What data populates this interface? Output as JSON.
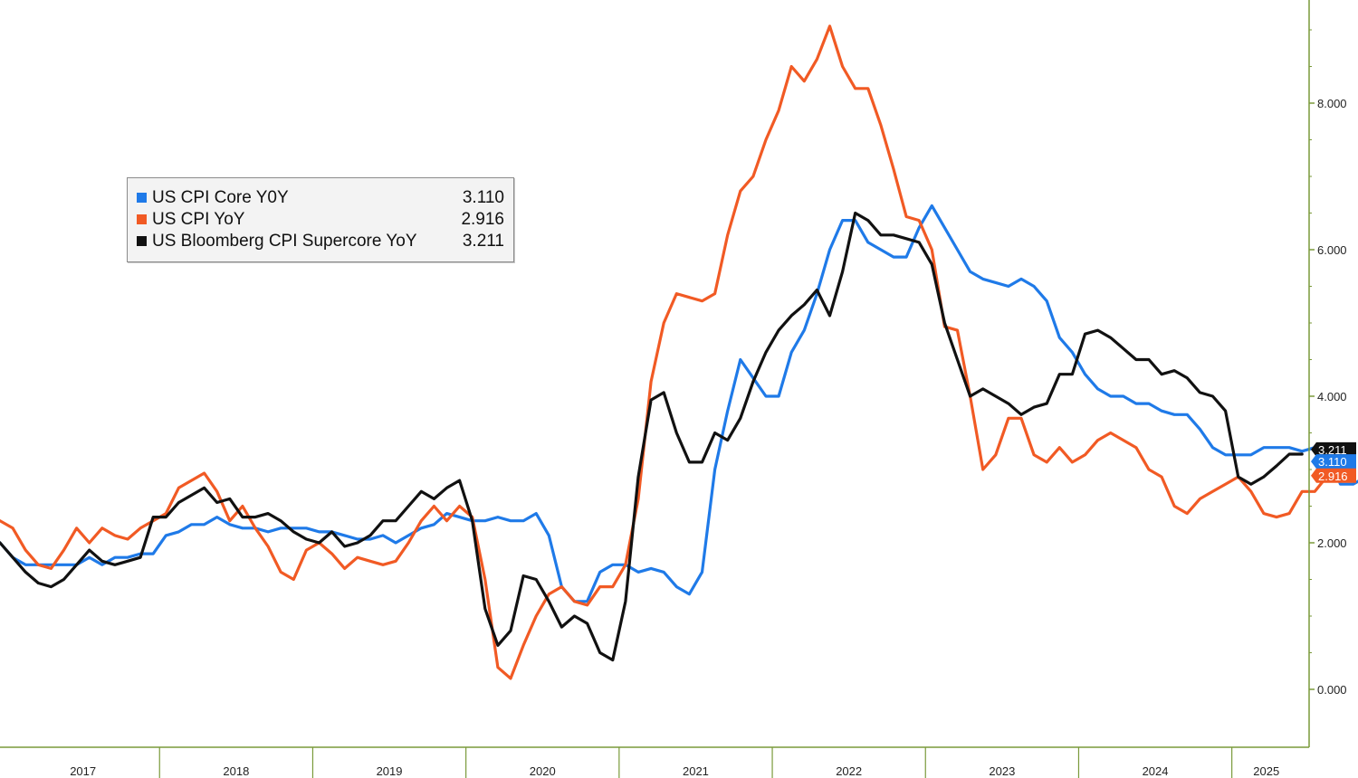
{
  "chart_data": {
    "type": "line",
    "title": "",
    "xlabel": "",
    "ylabel": "",
    "ylim": [
      -0.4,
      9.3
    ],
    "yticks": [
      0,
      2,
      4,
      6,
      8
    ],
    "ytick_labels": [
      "0.000",
      "2.000",
      "4.000",
      "6.000",
      "8.000"
    ],
    "y_axis_position": "right",
    "grid": false,
    "legend_position": "upper-left",
    "x_start": "2016-12",
    "x_step": "month",
    "x_year_labels": [
      "2017",
      "2018",
      "2019",
      "2020",
      "2021",
      "2022",
      "2023",
      "2024",
      "2025"
    ],
    "series": [
      {
        "name": "US CPI Core Y0Y",
        "last_value": "3.110",
        "color": "#1f7ae8",
        "values": [
          2.0,
          1.8,
          1.7,
          1.7,
          1.7,
          1.7,
          1.7,
          1.8,
          1.7,
          1.8,
          1.8,
          1.85,
          1.85,
          2.1,
          2.15,
          2.25,
          2.25,
          2.35,
          2.25,
          2.2,
          2.2,
          2.15,
          2.2,
          2.2,
          2.2,
          2.15,
          2.15,
          2.1,
          2.05,
          2.05,
          2.1,
          2.0,
          2.1,
          2.2,
          2.25,
          2.4,
          2.35,
          2.3,
          2.3,
          2.35,
          2.3,
          2.3,
          2.4,
          2.1,
          1.4,
          1.2,
          1.2,
          1.6,
          1.7,
          1.7,
          1.6,
          1.65,
          1.6,
          1.4,
          1.3,
          1.6,
          3.0,
          3.8,
          4.5,
          4.25,
          4.0,
          4.0,
          4.6,
          4.9,
          5.4,
          6.0,
          6.4,
          6.4,
          6.1,
          6.0,
          5.9,
          5.9,
          6.3,
          6.6,
          6.3,
          6.0,
          5.7,
          5.6,
          5.55,
          5.5,
          5.6,
          5.5,
          5.3,
          4.8,
          4.6,
          4.3,
          4.1,
          4.0,
          4.0,
          3.9,
          3.9,
          3.8,
          3.75,
          3.75,
          3.55,
          3.3,
          3.2,
          3.2,
          3.2,
          3.3,
          3.3,
          3.3,
          3.25,
          3.3,
          3.25,
          2.8,
          2.8,
          2.9,
          3.05,
          3.1
        ]
      },
      {
        "name": "US CPI YoY",
        "last_value": "2.916",
        "color": "#f15a24",
        "values": [
          2.3,
          2.2,
          1.9,
          1.7,
          1.65,
          1.9,
          2.2,
          2.0,
          2.2,
          2.1,
          2.05,
          2.2,
          2.3,
          2.4,
          2.75,
          2.85,
          2.95,
          2.7,
          2.3,
          2.5,
          2.2,
          1.95,
          1.6,
          1.5,
          1.9,
          2.0,
          1.85,
          1.65,
          1.8,
          1.75,
          1.7,
          1.75,
          2.0,
          2.3,
          2.5,
          2.3,
          2.5,
          2.35,
          1.5,
          0.3,
          0.15,
          0.6,
          1.0,
          1.3,
          1.4,
          1.2,
          1.15,
          1.4,
          1.4,
          1.7,
          2.6,
          4.2,
          5.0,
          5.4,
          5.35,
          5.3,
          5.4,
          6.2,
          6.8,
          7.0,
          7.5,
          7.9,
          8.5,
          8.3,
          8.6,
          9.05,
          8.5,
          8.2,
          8.2,
          7.7,
          7.1,
          6.45,
          6.4,
          6.0,
          4.95,
          4.9,
          4.0,
          3.0,
          3.2,
          3.7,
          3.7,
          3.2,
          3.1,
          3.3,
          3.1,
          3.2,
          3.4,
          3.5,
          3.4,
          3.3,
          3.0,
          2.9,
          2.5,
          2.4,
          2.6,
          2.7,
          2.8,
          2.9,
          2.7,
          2.4,
          2.35,
          2.4,
          2.7,
          2.7,
          2.916
        ]
      },
      {
        "name": "US Bloomberg CPI Supercore YoY",
        "last_value": "3.211",
        "color": "#111111",
        "values": [
          2.0,
          1.8,
          1.6,
          1.45,
          1.4,
          1.5,
          1.7,
          1.9,
          1.75,
          1.7,
          1.75,
          1.8,
          2.35,
          2.35,
          2.55,
          2.65,
          2.75,
          2.55,
          2.6,
          2.35,
          2.35,
          2.4,
          2.3,
          2.15,
          2.05,
          2.0,
          2.15,
          1.95,
          2.0,
          2.1,
          2.3,
          2.3,
          2.5,
          2.7,
          2.6,
          2.75,
          2.85,
          2.3,
          1.1,
          0.6,
          0.8,
          1.55,
          1.5,
          1.2,
          0.85,
          1.0,
          0.9,
          0.5,
          0.4,
          1.2,
          2.9,
          3.95,
          4.05,
          3.5,
          3.1,
          3.1,
          3.5,
          3.4,
          3.7,
          4.2,
          4.6,
          4.9,
          5.1,
          5.25,
          5.45,
          5.1,
          5.7,
          6.5,
          6.4,
          6.2,
          6.2,
          6.15,
          6.1,
          5.8,
          5.0,
          4.5,
          4.0,
          4.1,
          4.0,
          3.9,
          3.75,
          3.85,
          3.9,
          4.3,
          4.3,
          4.85,
          4.9,
          4.8,
          4.65,
          4.5,
          4.5,
          4.3,
          4.35,
          4.25,
          4.05,
          4.0,
          3.8,
          2.9,
          2.8,
          2.9,
          3.05,
          3.21,
          3.21
        ]
      }
    ]
  }
}
